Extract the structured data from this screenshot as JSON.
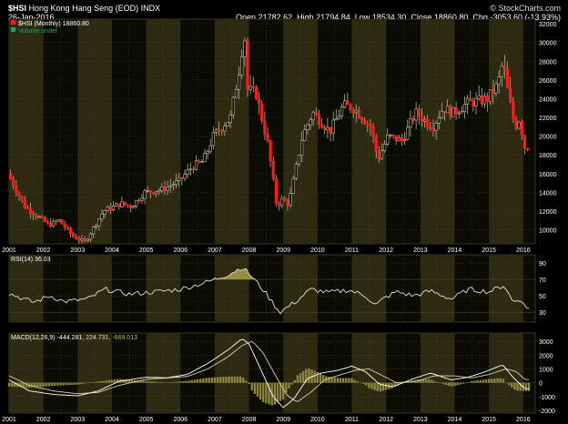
{
  "header": {
    "symbol": "$HSI",
    "name": "Hong Kong Hang Seng (EOD)",
    "exchange": "INDX",
    "date": "26-Jan-2016",
    "watermark": "© StockCharts.com",
    "open_label": "Open",
    "open_value": "21782.62",
    "high_label": "High",
    "high_value": "21794.84",
    "low_label": "Low",
    "low_value": "18534.30",
    "close_label": "Close",
    "close_value": "18860.80",
    "chg_label": "Chg",
    "chg_value": "-3053.60 (-13.93%)",
    "legend_price": "$HSI (Monthly) 18860.80",
    "legend_volume": "Volume undef"
  },
  "rsi_legend": "RSI(14) 36.03",
  "macd_legend": {
    "label": "MACD(12,26,9)",
    "macd": "-444.281,",
    "signal": "224.731,",
    "hist": "-669.013"
  },
  "colors": {
    "background": "#000000",
    "band_dark": "#0b0b05",
    "band_light": "#2e2a11",
    "grid": "#5a5634",
    "wick": "#c9c39a",
    "up_candle": "#c9c39a",
    "down_candle": "#ff1a1a",
    "line": "#e8e4b8",
    "fill": "#a8a04e",
    "hist": "#8d8540",
    "signal": "#d9d29e"
  },
  "chart_data": [
    {
      "type": "candlestick",
      "title": "Hong Kong Hang Seng (EOD)",
      "interval": "Monthly",
      "x_ticks": [
        "2001",
        "2002",
        "2003",
        "2004",
        "2005",
        "2006",
        "2007",
        "2008",
        "2009",
        "2010",
        "2011",
        "2012",
        "2013",
        "2014",
        "2015",
        "2016"
      ],
      "y_ticks": [
        10000,
        12000,
        14000,
        16000,
        18000,
        20000,
        22000,
        24000,
        26000,
        28000,
        30000,
        32000
      ],
      "ylim": [
        8500,
        32500
      ],
      "x_anchors": [
        2001.0,
        2001.5,
        2002.2,
        2002.5,
        2002.9,
        2003.25,
        2003.8,
        2004.3,
        2004.6,
        2005.0,
        2005.5,
        2006.0,
        2006.4,
        2006.7,
        2007.0,
        2007.5,
        2007.8,
        2007.9,
        2008.0,
        2008.25,
        2008.6,
        2008.85,
        2009.0,
        2009.2,
        2009.6,
        2009.9,
        2010.4,
        2010.8,
        2011.1,
        2011.6,
        2011.8,
        2012.1,
        2012.5,
        2012.9,
        2013.4,
        2013.7,
        2014.0,
        2014.4,
        2014.8,
        2015.0,
        2015.3,
        2015.45,
        2015.6,
        2015.8,
        2015.95,
        2016.05
      ],
      "y_anchors": [
        16000,
        12500,
        10500,
        11000,
        9300,
        8700,
        12000,
        12800,
        12500,
        14000,
        14300,
        15200,
        16800,
        17300,
        20000,
        22000,
        28000,
        31500,
        25000,
        24500,
        19000,
        12500,
        13200,
        12800,
        20000,
        22500,
        20500,
        23300,
        23000,
        21000,
        17500,
        20000,
        19500,
        22500,
        21000,
        23000,
        22500,
        23500,
        23800,
        24000,
        25500,
        28000,
        24500,
        21000,
        22000,
        18860
      ]
    },
    {
      "type": "line",
      "title": "RSI(14)",
      "last_value": 36.03,
      "y_ticks": [
        30,
        50,
        70,
        90
      ],
      "ylim": [
        18,
        100
      ],
      "x_anchors": [
        2001.0,
        2001.7,
        2002.2,
        2002.6,
        2003.3,
        2003.8,
        2004.5,
        2005.3,
        2006.0,
        2006.8,
        2007.4,
        2007.8,
        2008.0,
        2008.4,
        2008.9,
        2009.4,
        2009.8,
        2010.3,
        2010.9,
        2011.4,
        2011.7,
        2011.9,
        2012.3,
        2012.8,
        2013.3,
        2013.9,
        2014.4,
        2015.0,
        2015.45,
        2015.7,
        2015.9,
        2016.05
      ],
      "y_anchors": [
        53,
        42,
        50,
        43,
        46,
        58,
        52,
        55,
        58,
        67,
        76,
        85,
        77,
        58,
        30,
        44,
        58,
        54,
        57,
        50,
        38,
        46,
        55,
        50,
        56,
        46,
        58,
        55,
        63,
        42,
        47,
        36
      ],
      "fill_above": 70
    },
    {
      "type": "line",
      "title": "MACD(12,26,9)",
      "macd": -444.281,
      "signal": 224.731,
      "histogram": -669.013,
      "y_ticks": [
        -2000,
        -1000,
        0,
        1000,
        2000,
        3000
      ],
      "ylim": [
        -2200,
        3600
      ],
      "macd_x": [
        2001.0,
        2001.6,
        2002.3,
        2003.0,
        2003.6,
        2004.2,
        2005.0,
        2005.6,
        2006.2,
        2006.8,
        2007.4,
        2007.8,
        2008.0,
        2008.3,
        2008.7,
        2009.0,
        2009.3,
        2009.7,
        2010.1,
        2010.6,
        2011.0,
        2011.4,
        2011.8,
        2012.2,
        2012.8,
        2013.3,
        2013.9,
        2014.4,
        2014.9,
        2015.4,
        2015.7,
        2016.05
      ],
      "macd_y": [
        200,
        -600,
        -850,
        -950,
        -600,
        100,
        400,
        350,
        600,
        1400,
        2400,
        3200,
        2800,
        1200,
        -1000,
        -1800,
        -1200,
        300,
        700,
        900,
        1200,
        800,
        -100,
        -300,
        300,
        700,
        200,
        400,
        800,
        1300,
        400,
        -444
      ],
      "signal_x": [
        2001.0,
        2001.6,
        2002.3,
        2003.0,
        2003.6,
        2004.2,
        2005.0,
        2005.6,
        2006.2,
        2006.8,
        2007.4,
        2007.8,
        2008.1,
        2008.4,
        2008.8,
        2009.1,
        2009.4,
        2009.8,
        2010.2,
        2010.7,
        2011.1,
        2011.5,
        2011.9,
        2012.3,
        2012.9,
        2013.4,
        2014.0,
        2014.5,
        2015.0,
        2015.5,
        2015.8,
        2016.05
      ],
      "signal_y": [
        500,
        -200,
        -600,
        -800,
        -700,
        -200,
        250,
        350,
        450,
        1000,
        1900,
        2700,
        3000,
        2200,
        400,
        -900,
        -1400,
        -700,
        200,
        600,
        900,
        1000,
        500,
        0,
        100,
        500,
        500,
        350,
        600,
        1000,
        800,
        225
      ]
    }
  ]
}
